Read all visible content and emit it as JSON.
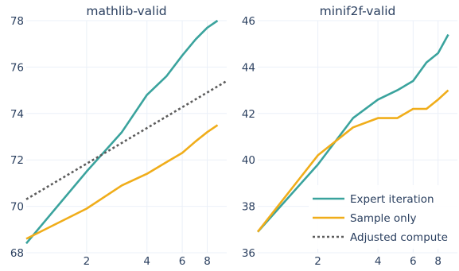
{
  "chart_data": [
    {
      "type": "line",
      "title": "mathlib-valid",
      "xscale": "log",
      "xlim": [
        1,
        10
      ],
      "ylim": [
        68,
        78
      ],
      "xticks": [
        2,
        4,
        6,
        8
      ],
      "yticks": [
        68,
        70,
        72,
        74,
        76,
        78
      ],
      "grid": true,
      "series": [
        {
          "name": "Expert iteration",
          "color": "#3aa39d",
          "dash": "",
          "x": [
            1,
            2,
            3,
            4,
            5,
            6,
            7,
            8,
            9
          ],
          "y": [
            68.4,
            71.5,
            73.2,
            74.8,
            75.6,
            76.5,
            77.2,
            77.7,
            78.0
          ]
        },
        {
          "name": "Sample only",
          "color": "#f0ad1a",
          "dash": "",
          "x": [
            1,
            2,
            3,
            4,
            5,
            6,
            7,
            8,
            9
          ],
          "y": [
            68.6,
            69.9,
            70.9,
            71.4,
            71.9,
            72.3,
            72.8,
            73.2,
            73.5
          ]
        },
        {
          "name": "Adjusted compute",
          "color": "#5c5c5c",
          "dash": "3,3",
          "x": [
            1,
            10
          ],
          "y": [
            70.3,
            75.4
          ]
        }
      ]
    },
    {
      "type": "line",
      "title": "minif2f-valid",
      "xscale": "log",
      "xlim": [
        1,
        10
      ],
      "ylim": [
        36,
        46
      ],
      "xticks": [
        2,
        4,
        6,
        8
      ],
      "yticks": [
        36,
        38,
        40,
        42,
        44,
        46
      ],
      "grid": true,
      "legend": "bottom-right",
      "series": [
        {
          "name": "Expert iteration",
          "color": "#3aa39d",
          "dash": "",
          "x": [
            1,
            2,
            3,
            4,
            5,
            6,
            7,
            8,
            9
          ],
          "y": [
            36.9,
            39.8,
            41.8,
            42.6,
            43.0,
            43.4,
            44.2,
            44.6,
            45.4
          ]
        },
        {
          "name": "Sample only",
          "color": "#f0ad1a",
          "dash": "",
          "x": [
            1,
            2,
            3,
            4,
            5,
            6,
            7,
            8,
            9
          ],
          "y": [
            36.9,
            40.2,
            41.4,
            41.8,
            41.8,
            42.2,
            42.2,
            42.6,
            43.0
          ]
        }
      ]
    }
  ],
  "legend": {
    "items": [
      {
        "label": "Expert iteration",
        "color": "#3aa39d",
        "dash": ""
      },
      {
        "label": "Sample only",
        "color": "#f0ad1a",
        "dash": ""
      },
      {
        "label": "Adjusted compute",
        "color": "#5c5c5c",
        "dash": "3,3"
      }
    ]
  }
}
